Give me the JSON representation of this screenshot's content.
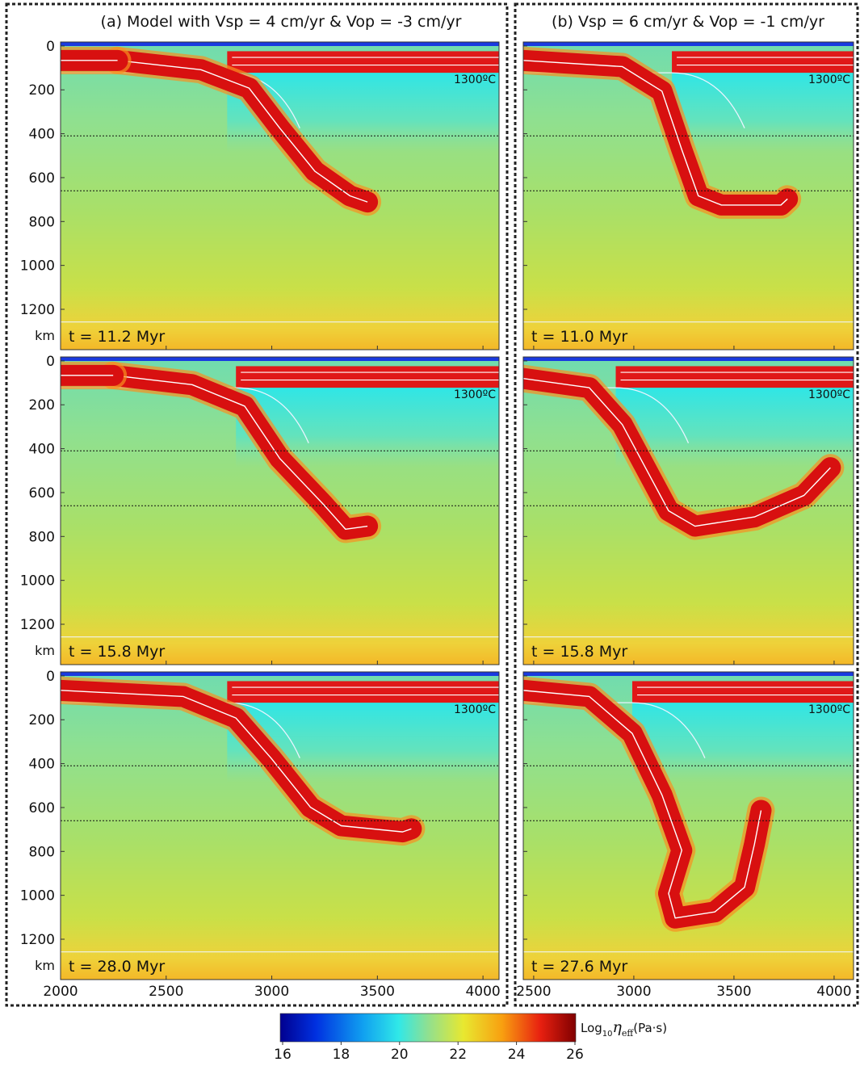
{
  "columns": [
    {
      "title": "(a) Model with Vsp = 4 cm/yr & Vop = -3 cm/yr",
      "xlim": [
        2000,
        4076
      ],
      "xticks": [
        2000,
        2500,
        3000,
        3500,
        4000
      ],
      "panels": [
        {
          "time": "t = 11.2 Myr"
        },
        {
          "time": "t = 15.8 Myr"
        },
        {
          "time": "t = 28.0 Myr"
        }
      ]
    },
    {
      "title": "(b) Vsp = 6 cm/yr & Vop = -1 cm/yr",
      "xlim": [
        2448,
        4097
      ],
      "xticks": [
        2500,
        3000,
        3500,
        4000
      ],
      "panels": [
        {
          "time": "t = 11.0 Myr"
        },
        {
          "time": "t = 15.8 Myr"
        },
        {
          "time": "t = 27.6 Myr"
        }
      ]
    }
  ],
  "depth_axis": {
    "ylim": [
      -18,
      1384
    ],
    "yticks": [
      0,
      200,
      400,
      600,
      800,
      1000,
      1200
    ],
    "unit": "km"
  },
  "discontinuity_depths": [
    410,
    660
  ],
  "isotherm_label": "1300ºC",
  "colorbar": {
    "lim": [
      16,
      26
    ],
    "ticks": [
      16,
      18,
      20,
      22,
      24,
      26
    ],
    "label": {
      "base": "Log",
      "base_subscript": "10",
      "symbol": "η",
      "symbol_subscript": "eff",
      "unit": "(Pa·s)"
    }
  }
}
